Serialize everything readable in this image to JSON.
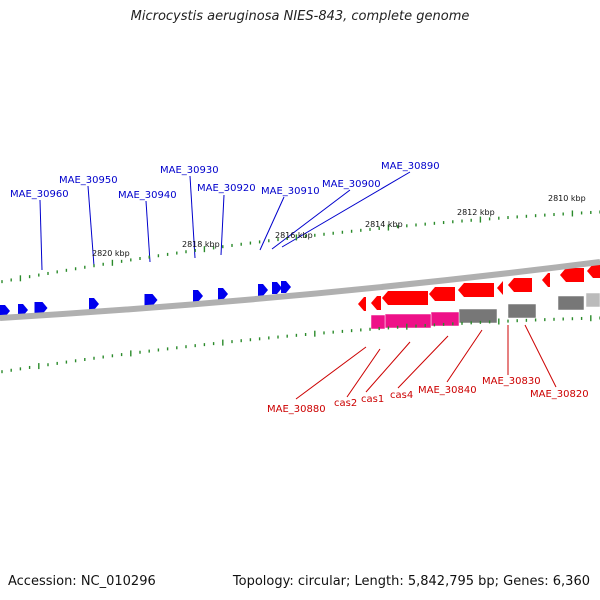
{
  "title": "Microcystis aeruginosa NIES-843, complete genome",
  "accession": "Accession: NC_010296",
  "topology": "Topology: circular; Length: 5,842,795 bp; Genes: 6,360",
  "colors": {
    "forward_gene": "#0000ee",
    "reverse_gene": "#ff0000",
    "cas_gene": "#ee1188",
    "hypothetical_gene": "#777777",
    "backbone": "#888888",
    "ticks": "#2a8a2a",
    "label_top": "#0000cc",
    "label_bottom": "#cc0000"
  },
  "scale_labels": [
    "2820 kbp",
    "2818 kbp",
    "2816 kbp",
    "2814 kbp",
    "2812 kbp",
    "2810 kbp"
  ],
  "top_labels": [
    "MAE_30960",
    "MAE_30950",
    "MAE_30940",
    "MAE_30930",
    "MAE_30920",
    "MAE_30910",
    "MAE_30900",
    "MAE_30890"
  ],
  "bottom_labels": [
    "MAE_30880",
    "cas2",
    "cas1",
    "cas4",
    "MAE_30840",
    "MAE_30830",
    "MAE_30820"
  ]
}
